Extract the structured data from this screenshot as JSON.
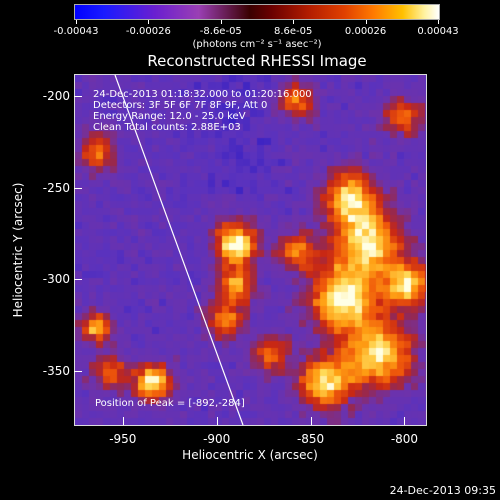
{
  "colorbar": {
    "ticks": [
      "-0.00043",
      "-0.00026",
      "-8.6e-05",
      "8.6e-05",
      "0.00026",
      "0.00043"
    ],
    "unit": "(photons cm⁻² s⁻¹ asec⁻²)"
  },
  "title": "Reconstructed RHESSI Image",
  "info": {
    "time_range": "24-Dec-2013 01:18:32.000 to 01:20:16.000",
    "detectors": "Detectors: 3F 5F 6F 7F 8F 9F, Att 0",
    "energy": "Energy Range: 12.0 - 25.0 keV",
    "clean": "Clean     Total counts: 2.88E+03",
    "peak": "Position of Peak = [-892,-284]"
  },
  "chart_data": {
    "type": "heatmap",
    "title": "Reconstructed RHESSI Image",
    "xlabel": "Heliocentric X (arcsec)",
    "ylabel": "Heliocentric Y (arcsec)",
    "xlim": [
      -976,
      -788
    ],
    "ylim": [
      -380,
      -188
    ],
    "xticks": [
      "-950",
      "-900",
      "-850",
      "-800"
    ],
    "yticks": [
      "-200",
      "-250",
      "-300",
      "-350"
    ],
    "peak_position": [
      -892,
      -284
    ],
    "limb_line": true,
    "colormap": "blue-purple-red-yellow-white",
    "value_range": [
      -0.00043,
      0.00043
    ]
  },
  "timestamp": "24-Dec-2013 09:35"
}
